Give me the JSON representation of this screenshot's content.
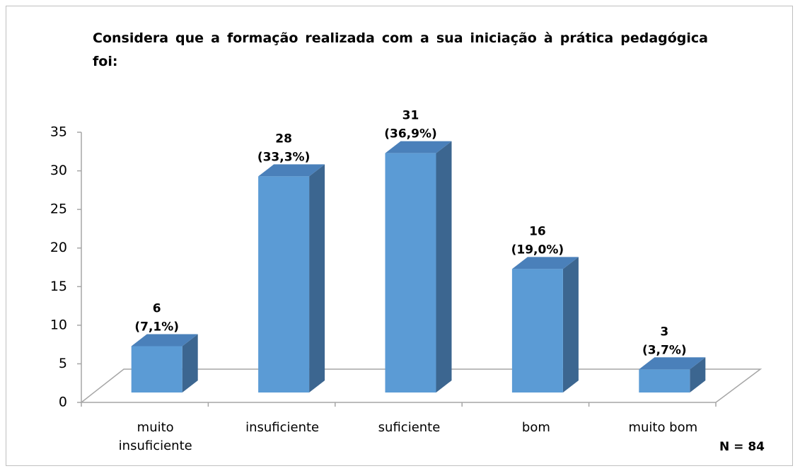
{
  "chart_data": {
    "type": "bar3d",
    "title": "Considera que a formação realizada com a sua iniciação à prática pedagógica foi:",
    "categories": [
      "muito insuficiente",
      "insuficiente",
      "suficiente",
      "bom",
      "muito bom"
    ],
    "values": [
      6,
      28,
      31,
      16,
      3
    ],
    "percent_labels": [
      "(7,1%)",
      "(33,3%)",
      "(36,9%)",
      "(19,0%)",
      "(3,7%)"
    ],
    "color": "#5b9bd5",
    "side_color": "#3c6690",
    "top_color": "#4a80ba",
    "ylim": [
      0,
      35
    ],
    "yticks": [
      0,
      5,
      10,
      15,
      20,
      25,
      30,
      35
    ],
    "note": "N = 84"
  }
}
